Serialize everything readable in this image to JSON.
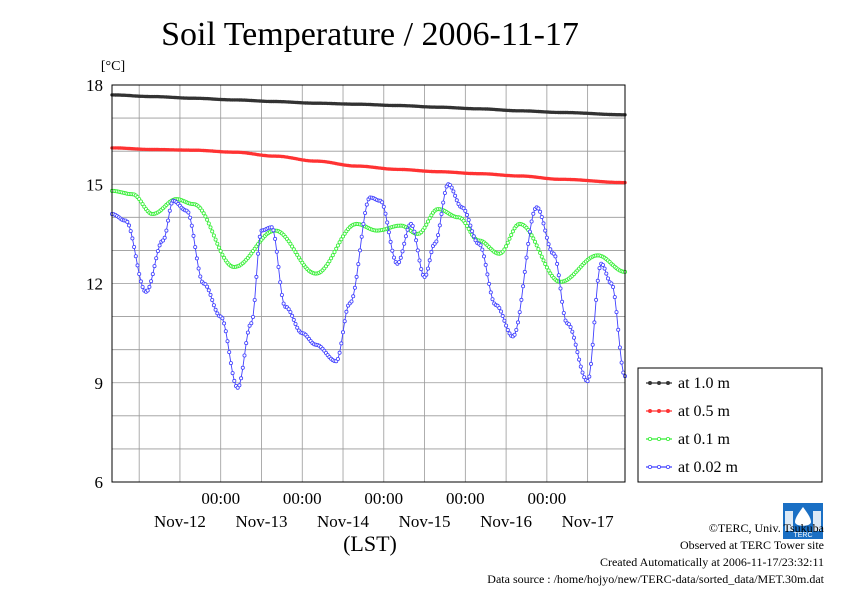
{
  "chart_data": {
    "type": "line",
    "title": "Soil Temperature / 2006-11-17",
    "ylabel": "[°C]",
    "xlabel": "(LST)",
    "ylim": [
      6,
      18
    ],
    "yticks": [
      6,
      9,
      12,
      15,
      18
    ],
    "x_range_days": [
      "2006-11-11T16:00",
      "2006-11-17T23:00"
    ],
    "time_labels": [
      "00:00",
      "00:00",
      "00:00",
      "00:00",
      "00:00"
    ],
    "date_labels": [
      "Nov-12",
      "Nov-13",
      "Nov-14",
      "Nov-15",
      "Nov-16",
      "Nov-17"
    ],
    "grid": true,
    "legend_position": "right",
    "series": [
      {
        "name": "at 1.0 m",
        "color": "#333333",
        "points": [
          [
            "11-11 16:00",
            17.7
          ],
          [
            "11-12 04:00",
            17.65
          ],
          [
            "11-12 16:00",
            17.6
          ],
          [
            "11-13 04:00",
            17.55
          ],
          [
            "11-13 16:00",
            17.5
          ],
          [
            "11-14 04:00",
            17.45
          ],
          [
            "11-14 16:00",
            17.42
          ],
          [
            "11-15 04:00",
            17.38
          ],
          [
            "11-15 16:00",
            17.33
          ],
          [
            "11-16 04:00",
            17.28
          ],
          [
            "11-16 16:00",
            17.22
          ],
          [
            "11-17 04:00",
            17.17
          ],
          [
            "11-17 23:00",
            17.1
          ]
        ]
      },
      {
        "name": "at 0.5 m",
        "color": "#ff3333",
        "points": [
          [
            "11-11 16:00",
            16.1
          ],
          [
            "11-12 04:00",
            16.05
          ],
          [
            "11-12 16:00",
            16.03
          ],
          [
            "11-13 04:00",
            15.97
          ],
          [
            "11-13 16:00",
            15.85
          ],
          [
            "11-14 04:00",
            15.7
          ],
          [
            "11-14 16:00",
            15.55
          ],
          [
            "11-15 04:00",
            15.45
          ],
          [
            "11-15 16:00",
            15.38
          ],
          [
            "11-16 04:00",
            15.32
          ],
          [
            "11-16 16:00",
            15.25
          ],
          [
            "11-17 04:00",
            15.15
          ],
          [
            "11-17 23:00",
            15.05
          ]
        ]
      },
      {
        "name": "at 0.1 m",
        "color": "#33ee33",
        "points": [
          [
            "11-11 16:00",
            14.8
          ],
          [
            "11-11 22:00",
            14.7
          ],
          [
            "11-12 04:00",
            14.1
          ],
          [
            "11-12 11:00",
            14.55
          ],
          [
            "11-12 16:00",
            14.4
          ],
          [
            "11-13 04:00",
            12.5
          ],
          [
            "11-13 16:00",
            13.6
          ],
          [
            "11-14 04:00",
            12.3
          ],
          [
            "11-14 16:00",
            13.8
          ],
          [
            "11-14 22:00",
            13.6
          ],
          [
            "11-15 05:00",
            13.75
          ],
          [
            "11-15 10:00",
            13.5
          ],
          [
            "11-15 16:00",
            14.25
          ],
          [
            "11-15 22:00",
            14.0
          ],
          [
            "11-16 04:00",
            13.3
          ],
          [
            "11-16 10:00",
            12.9
          ],
          [
            "11-16 16:00",
            13.8
          ],
          [
            "11-17 04:00",
            12.05
          ],
          [
            "11-17 15:00",
            12.85
          ],
          [
            "11-17 23:00",
            12.35
          ]
        ]
      },
      {
        "name": "at 0.02 m",
        "color": "#4040ff",
        "points": [
          [
            "11-11 16:00",
            14.1
          ],
          [
            "11-11 20:00",
            13.9
          ],
          [
            "11-12 02:00",
            11.75
          ],
          [
            "11-12 07:00",
            13.3
          ],
          [
            "11-12 10:00",
            14.5
          ],
          [
            "11-12 14:00",
            14.2
          ],
          [
            "11-12 19:00",
            12.0
          ],
          [
            "11-13 00:00",
            11.0
          ],
          [
            "11-13 05:00",
            8.85
          ],
          [
            "11-13 09:00",
            10.8
          ],
          [
            "11-13 12:00",
            13.6
          ],
          [
            "11-13 15:00",
            13.7
          ],
          [
            "11-13 19:00",
            11.3
          ],
          [
            "11-14 00:00",
            10.5
          ],
          [
            "11-14 04:00",
            10.15
          ],
          [
            "11-14 10:00",
            9.65
          ],
          [
            "11-14 14:00",
            11.4
          ],
          [
            "11-14 20:00",
            14.6
          ],
          [
            "11-14 23:00",
            14.5
          ],
          [
            "11-15 04:00",
            12.6
          ],
          [
            "11-15 08:00",
            13.8
          ],
          [
            "11-15 12:00",
            12.2
          ],
          [
            "11-15 15:00",
            13.2
          ],
          [
            "11-15 19:00",
            15.0
          ],
          [
            "11-15 23:00",
            14.3
          ],
          [
            "11-16 04:00",
            13.2
          ],
          [
            "11-16 09:00",
            11.35
          ],
          [
            "11-16 14:00",
            10.4
          ],
          [
            "11-16 21:00",
            14.3
          ],
          [
            "11-17 02:00",
            12.9
          ],
          [
            "11-17 06:00",
            10.8
          ],
          [
            "11-17 12:00",
            9.05
          ],
          [
            "11-17 16:00",
            12.6
          ],
          [
            "11-17 19:00",
            12.0
          ],
          [
            "11-17 23:00",
            9.2
          ]
        ]
      }
    ]
  },
  "credits": {
    "copyright": "©TERC, Univ. Tsukuba",
    "site": "Observed at TERC Tower site",
    "created": "Created Automatically at 2006-11-17/23:32:11",
    "source": "Data source : /home/hojyo/new/TERC-data/sorted_data/MET.30m.dat"
  },
  "logo": {
    "text": "TERC",
    "color": "#1a6fc4"
  }
}
